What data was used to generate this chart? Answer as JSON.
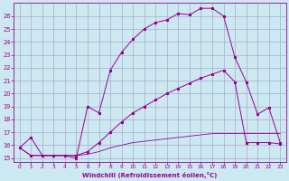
{
  "bg_color": "#cce8f0",
  "grid_color": "#aaaacc",
  "line_color": "#990099",
  "xlim": [
    -0.5,
    23.5
  ],
  "ylim": [
    14.7,
    27.0
  ],
  "yticks": [
    15,
    16,
    17,
    18,
    19,
    20,
    21,
    22,
    23,
    24,
    25,
    26
  ],
  "xticks": [
    0,
    1,
    2,
    3,
    4,
    5,
    6,
    7,
    8,
    9,
    10,
    11,
    12,
    13,
    14,
    15,
    16,
    17,
    18,
    19,
    20,
    21,
    22,
    23
  ],
  "xlabel": "Windchill (Refroidissement éolien,°C)",
  "line1_x": [
    0,
    1,
    2,
    3,
    4,
    5,
    6,
    7,
    8,
    9,
    10,
    11,
    12,
    13,
    14,
    15,
    16,
    17,
    18,
    19,
    20,
    21,
    22,
    23
  ],
  "line1_y": [
    15.8,
    16.6,
    15.2,
    15.2,
    15.2,
    15.0,
    19.0,
    18.5,
    21.8,
    23.2,
    24.2,
    25.0,
    25.5,
    25.7,
    26.2,
    26.1,
    26.6,
    26.6,
    26.0,
    22.8,
    20.9,
    18.4,
    18.9,
    16.2
  ],
  "line2_x": [
    0,
    1,
    2,
    3,
    4,
    5,
    6,
    7,
    8,
    9,
    10,
    11,
    12,
    13,
    14,
    15,
    16,
    17,
    18,
    19,
    20,
    21,
    22,
    23
  ],
  "line2_y": [
    15.8,
    15.2,
    15.2,
    15.2,
    15.2,
    15.2,
    15.5,
    16.2,
    17.0,
    17.8,
    18.5,
    19.0,
    19.5,
    20.0,
    20.4,
    20.8,
    21.2,
    21.5,
    21.8,
    20.9,
    16.2,
    16.2,
    16.2,
    16.1
  ],
  "line3_x": [
    0,
    1,
    2,
    3,
    4,
    5,
    6,
    7,
    8,
    9,
    10,
    11,
    12,
    13,
    14,
    15,
    16,
    17,
    18,
    19,
    20,
    21,
    22,
    23
  ],
  "line3_y": [
    15.8,
    15.2,
    15.2,
    15.2,
    15.2,
    15.2,
    15.3,
    15.5,
    15.8,
    16.0,
    16.2,
    16.3,
    16.4,
    16.5,
    16.6,
    16.7,
    16.8,
    16.9,
    16.9,
    16.9,
    16.9,
    16.9,
    16.9,
    16.9
  ]
}
